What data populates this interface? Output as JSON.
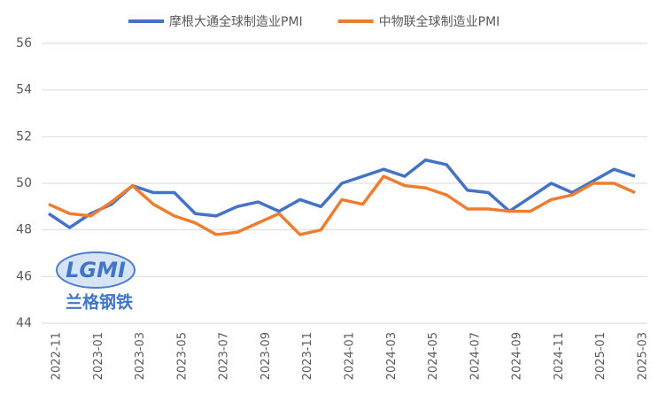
{
  "chart_data": {
    "type": "line",
    "categories": [
      "2022-11",
      null,
      "2023-01",
      null,
      "2023-03",
      null,
      "2023-05",
      null,
      "2023-07",
      null,
      "2023-09",
      null,
      "2023-11",
      null,
      "2024-01",
      null,
      "2024-03",
      null,
      "2024-05",
      null,
      "2024-07",
      null,
      "2024-09",
      null,
      "2024-11",
      null,
      "2025-01",
      null,
      "2025-03"
    ],
    "series": [
      {
        "name": "摩根大通全球制造业PMI",
        "color": "#4472c4",
        "values": [
          48.7,
          48.1,
          48.7,
          49.1,
          49.9,
          49.6,
          49.6,
          48.7,
          48.6,
          49.0,
          49.2,
          48.8,
          49.3,
          49.0,
          50.0,
          50.3,
          50.6,
          50.3,
          51.0,
          50.8,
          49.7,
          49.6,
          48.8,
          49.4,
          50.0,
          49.6,
          50.1,
          50.6,
          50.3
        ]
      },
      {
        "name": "中物联全球制造业PMI",
        "color": "#ed7d31",
        "values": [
          49.1,
          48.7,
          48.6,
          49.2,
          49.9,
          49.1,
          48.6,
          48.3,
          47.8,
          47.9,
          48.3,
          48.7,
          47.8,
          48.0,
          49.3,
          49.1,
          50.3,
          49.9,
          49.8,
          49.5,
          48.9,
          48.9,
          48.8,
          48.8,
          49.3,
          49.5,
          50.0,
          50.0,
          49.6
        ]
      }
    ],
    "ylim": [
      44,
      56
    ],
    "yticks": [
      44,
      46,
      48,
      50,
      52,
      54,
      56
    ],
    "grid": true,
    "legend": "top"
  },
  "logo": {
    "text": "LGMI",
    "subtitle": "兰格钢铁"
  }
}
